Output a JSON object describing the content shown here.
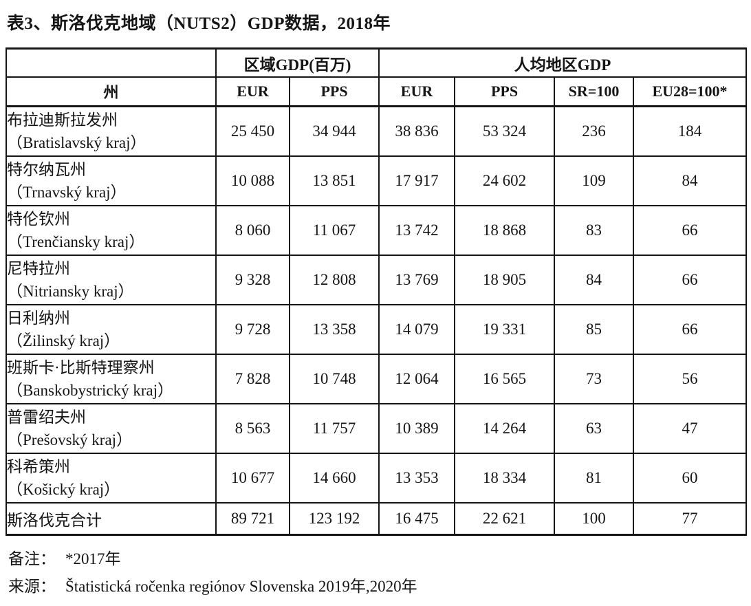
{
  "title": "表3、斯洛伐克地域（NUTS2）GDP数据，2018年",
  "table": {
    "group_headers": {
      "region_gdp": "区域GDP(百万)",
      "per_capita_gdp": "人均地区GDP"
    },
    "column_headers": {
      "region": "州",
      "eur1": "EUR",
      "pps1": "PPS",
      "eur2": "EUR",
      "pps2": "PPS",
      "sr": "SR=100",
      "eu28": "EU28=100*"
    },
    "rows": [
      {
        "name_cn": "布拉迪斯拉发州",
        "name_sk": "（Bratislavský kraj）",
        "values": [
          "25 450",
          "34 944",
          "38 836",
          "53 324",
          "236",
          "184"
        ]
      },
      {
        "name_cn": "特尔纳瓦州",
        "name_sk": "（Trnavský kraj）",
        "values": [
          "10 088",
          "13 851",
          "17 917",
          "24 602",
          "109",
          "84"
        ]
      },
      {
        "name_cn": "特伦钦州",
        "name_sk": "（Trenčiansky kraj）",
        "values": [
          "8 060",
          "11 067",
          "13 742",
          "18 868",
          "83",
          "66"
        ]
      },
      {
        "name_cn": "尼特拉州",
        "name_sk": "（Nitriansky kraj）",
        "values": [
          "9 328",
          "12 808",
          "13 769",
          "18 905",
          "84",
          "66"
        ]
      },
      {
        "name_cn": "日利纳州",
        "name_sk": "（Žilinský kraj）",
        "values": [
          "9 728",
          "13 358",
          "14 079",
          "19 331",
          "85",
          "66"
        ]
      },
      {
        "name_cn": "班斯卡·比斯特理察州",
        "name_sk": "（Banskobystrický kraj）",
        "values": [
          "7 828",
          "10 748",
          "12 064",
          "16 565",
          "73",
          "56"
        ]
      },
      {
        "name_cn": "普雷绍夫州",
        "name_sk": "（Prešovský kraj）",
        "values": [
          "8 563",
          "11 757",
          "10 389",
          "14 264",
          "63",
          "47"
        ]
      },
      {
        "name_cn": "科希策州",
        "name_sk": "（Košický kraj）",
        "values": [
          "10 677",
          "14 660",
          "13 353",
          "18 334",
          "81",
          "60"
        ]
      }
    ],
    "total_row": {
      "label": "斯洛伐克合计",
      "values": [
        "89 721",
        "123 192",
        "16 475",
        "22 621",
        "100",
        "77"
      ]
    }
  },
  "footer": {
    "note_label": "备注：",
    "note": "*2017年",
    "source_label": "来源：",
    "source": "Štatistická ročenka regiónov Slovenska 2019年,2020年"
  }
}
